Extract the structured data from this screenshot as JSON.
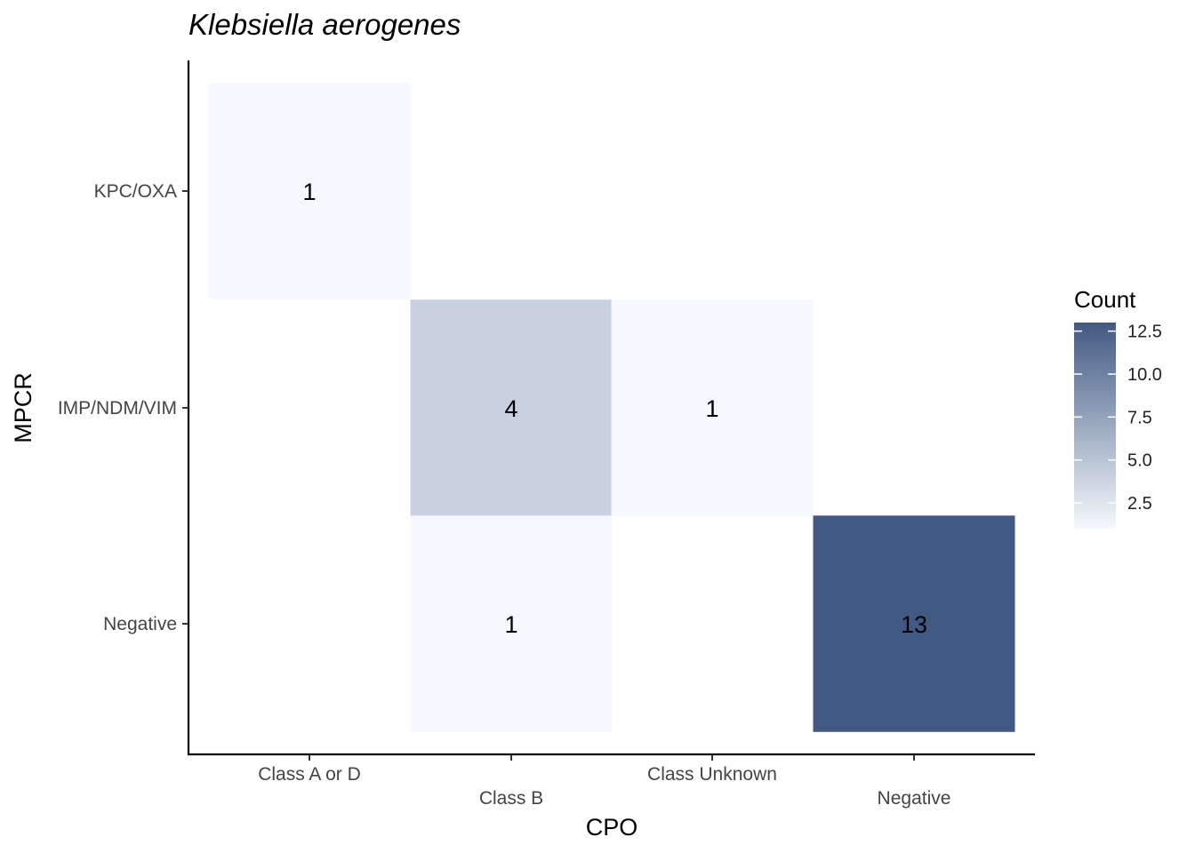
{
  "chart_data": {
    "type": "heatmap",
    "title": "Klebsiella aerogenes",
    "xlabel": "CPO",
    "ylabel": "MPCR",
    "x_categories": [
      "Class A or D",
      "Class B",
      "Class Unknown",
      "Negative"
    ],
    "y_categories": [
      "KPC/OXA",
      "IMP/NDM/VIM",
      "Negative"
    ],
    "cells": [
      {
        "x": "Class A or D",
        "y": "KPC/OXA",
        "value": 1
      },
      {
        "x": "Class B",
        "y": "IMP/NDM/VIM",
        "value": 4
      },
      {
        "x": "Class Unknown",
        "y": "IMP/NDM/VIM",
        "value": 1
      },
      {
        "x": "Class B",
        "y": "Negative",
        "value": 1
      },
      {
        "x": "Negative",
        "y": "Negative",
        "value": 13
      }
    ],
    "legend": {
      "title": "Count",
      "ticks": [
        2.5,
        5.0,
        7.5,
        10.0,
        12.5
      ],
      "tick_labels": [
        "2.5",
        "5.0",
        "7.5",
        "10.0",
        "12.5"
      ],
      "range": [
        1,
        13
      ],
      "low_color": "#f5f9fd",
      "high_color": "#425a83",
      "placement": "right"
    },
    "grid": false
  }
}
